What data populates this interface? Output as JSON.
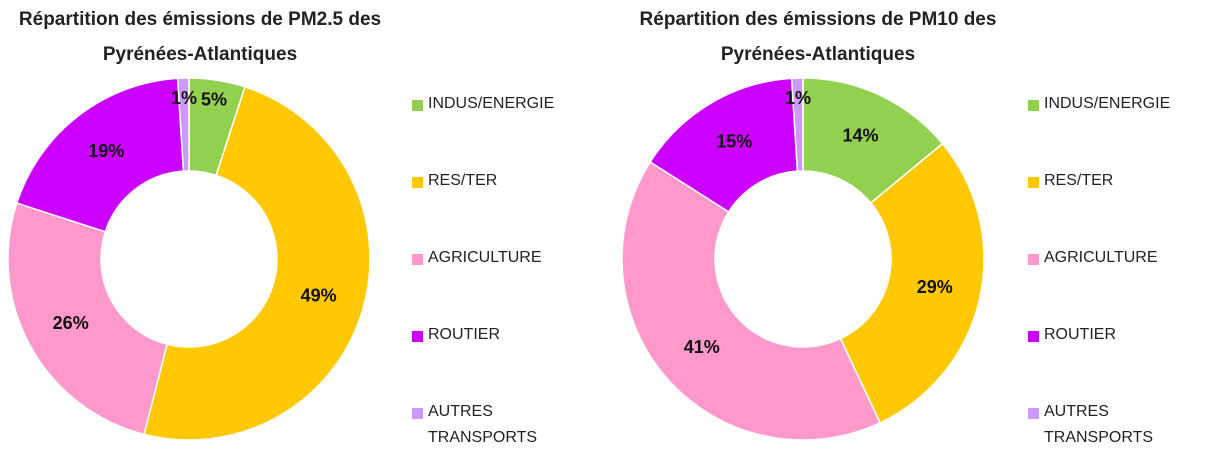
{
  "chart_data": [
    {
      "type": "donut",
      "title": [
        "Répartition des émissions de PM2.5 des",
        "Pyrénées-Atlantiques"
      ],
      "categories": [
        "INDUS/ENERGIE",
        "RES/TER",
        "AGRICULTURE",
        "ROUTIER",
        "AUTRES TRANSPORTS"
      ],
      "values": [
        5,
        49,
        26,
        19,
        1
      ],
      "value_labels": [
        "5%",
        "49%",
        "26%",
        "19%",
        "1%"
      ],
      "colors": [
        "#92d050",
        "#ffc800",
        "#ff99cc",
        "#cc00ff",
        "#cc99ff"
      ]
    },
    {
      "type": "donut",
      "title": [
        "Répartition des émissions de PM10  des",
        "Pyrénées-Atlantiques"
      ],
      "categories": [
        "INDUS/ENERGIE",
        "RES/TER",
        "AGRICULTURE",
        "ROUTIER",
        "AUTRES TRANSPORTS"
      ],
      "values": [
        14,
        29,
        41,
        15,
        1
      ],
      "value_labels": [
        "14%",
        "29%",
        "41%",
        "15%",
        "1%"
      ],
      "colors": [
        "#92d050",
        "#ffc800",
        "#ff99cc",
        "#cc00ff",
        "#cc99ff"
      ]
    }
  ]
}
